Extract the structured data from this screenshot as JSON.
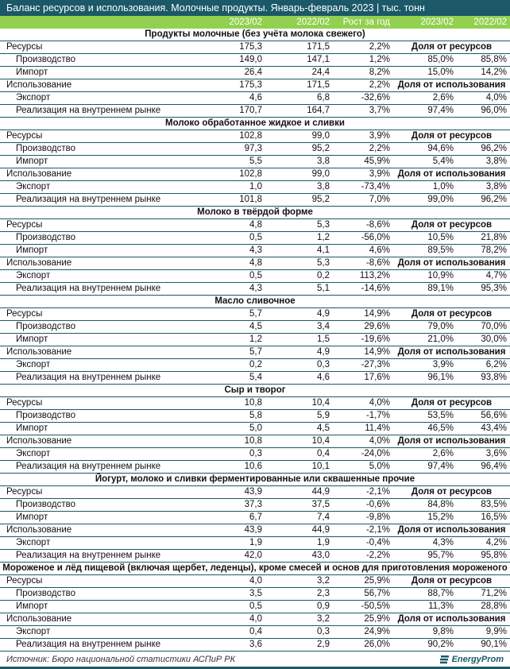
{
  "title": "Баланс ресурсов и использования. Молочные продукты. Январь-февраль 2023 | тыс. тонн",
  "columns": [
    "",
    "2023/02",
    "2022/02",
    "Рост за год",
    "2023/02",
    "2022/02"
  ],
  "sections": [
    {
      "name": "Продукты молочные (без учёта молока свежего)",
      "rows": [
        {
          "label": "Ресурсы",
          "v": [
            "175,3",
            "171,5",
            "2,2%"
          ],
          "share": "Доля от ресурсов"
        },
        {
          "label": "Производство",
          "v": [
            "149,0",
            "147,1",
            "1,2%",
            "85,0%",
            "85,8%"
          ]
        },
        {
          "label": "Импорт",
          "v": [
            "26,4",
            "24,4",
            "8,2%",
            "15,0%",
            "14,2%"
          ]
        },
        {
          "label": "Использование",
          "v": [
            "175,3",
            "171,5",
            "2,2%"
          ],
          "share": "Доля от использования"
        },
        {
          "label": "Экспорт",
          "v": [
            "4,6",
            "6,8",
            "-32,6%",
            "2,6%",
            "4,0%"
          ]
        },
        {
          "label": "Реализация на внутреннем рынке",
          "v": [
            "170,7",
            "164,7",
            "3,7%",
            "97,4%",
            "96,0%"
          ]
        }
      ]
    },
    {
      "name": "Молоко обработанное жидкое и сливки",
      "rows": [
        {
          "label": "Ресурсы",
          "v": [
            "102,8",
            "99,0",
            "3,9%"
          ],
          "share": "Доля от ресурсов"
        },
        {
          "label": "Производство",
          "v": [
            "97,3",
            "95,2",
            "2,2%",
            "94,6%",
            "96,2%"
          ]
        },
        {
          "label": "Импорт",
          "v": [
            "5,5",
            "3,8",
            "45,9%",
            "5,4%",
            "3,8%"
          ]
        },
        {
          "label": "Использование",
          "v": [
            "102,8",
            "99,0",
            "3,9%"
          ],
          "share": "Доля от использования"
        },
        {
          "label": "Экспорт",
          "v": [
            "1,0",
            "3,8",
            "-73,4%",
            "1,0%",
            "3,8%"
          ]
        },
        {
          "label": "Реализация на внутреннем рынке",
          "v": [
            "101,8",
            "95,2",
            "7,0%",
            "99,0%",
            "96,2%"
          ]
        }
      ]
    },
    {
      "name": "Молоко в твёрдой форме",
      "rows": [
        {
          "label": "Ресурсы",
          "v": [
            "4,8",
            "5,3",
            "-8,6%"
          ],
          "share": "Доля от ресурсов"
        },
        {
          "label": "Производство",
          "v": [
            "0,5",
            "1,2",
            "-56,0%",
            "10,5%",
            "21,8%"
          ]
        },
        {
          "label": "Импорт",
          "v": [
            "4,3",
            "4,1",
            "4,6%",
            "89,5%",
            "78,2%"
          ]
        },
        {
          "label": "Использование",
          "v": [
            "4,8",
            "5,3",
            "-8,6%"
          ],
          "share": "Доля от использования"
        },
        {
          "label": "Экспорт",
          "v": [
            "0,5",
            "0,2",
            "113,2%",
            "10,9%",
            "4,7%"
          ]
        },
        {
          "label": "Реализация на внутреннем рынке",
          "v": [
            "4,3",
            "5,1",
            "-14,6%",
            "89,1%",
            "95,3%"
          ]
        }
      ]
    },
    {
      "name": "Масло сливочное",
      "rows": [
        {
          "label": "Ресурсы",
          "v": [
            "5,7",
            "4,9",
            "14,9%"
          ],
          "share": "Доля от ресурсов"
        },
        {
          "label": "Производство",
          "v": [
            "4,5",
            "3,4",
            "29,6%",
            "79,0%",
            "70,0%"
          ]
        },
        {
          "label": "Импорт",
          "v": [
            "1,2",
            "1,5",
            "-19,6%",
            "21,0%",
            "30,0%"
          ]
        },
        {
          "label": "Использование",
          "v": [
            "5,7",
            "4,9",
            "14,9%"
          ],
          "share": "Доля от использования"
        },
        {
          "label": "Экспорт",
          "v": [
            "0,2",
            "0,3",
            "-27,3%",
            "3,9%",
            "6,2%"
          ]
        },
        {
          "label": "Реализация на внутреннем рынке",
          "v": [
            "5,4",
            "4,6",
            "17,6%",
            "96,1%",
            "93,8%"
          ]
        }
      ]
    },
    {
      "name": "Сыр и творог",
      "rows": [
        {
          "label": "Ресурсы",
          "v": [
            "10,8",
            "10,4",
            "4,0%"
          ],
          "share": "Доля от ресурсов"
        },
        {
          "label": "Производство",
          "v": [
            "5,8",
            "5,9",
            "-1,7%",
            "53,5%",
            "56,6%"
          ]
        },
        {
          "label": "Импорт",
          "v": [
            "5,0",
            "4,5",
            "11,4%",
            "46,5%",
            "43,4%"
          ]
        },
        {
          "label": "Использование",
          "v": [
            "10,8",
            "10,4",
            "4,0%"
          ],
          "share": "Доля от использования"
        },
        {
          "label": "Экспорт",
          "v": [
            "0,3",
            "0,4",
            "-24,0%",
            "2,6%",
            "3,6%"
          ]
        },
        {
          "label": "Реализация на внутреннем рынке",
          "v": [
            "10,6",
            "10,1",
            "5,0%",
            "97,4%",
            "96,4%"
          ]
        }
      ]
    },
    {
      "name": "Йогурт, молоко и сливки ферментированные или сквашенные прочие",
      "rows": [
        {
          "label": "Ресурсы",
          "v": [
            "43,9",
            "44,9",
            "-2,1%"
          ],
          "share": "Доля от ресурсов"
        },
        {
          "label": "Производство",
          "v": [
            "37,3",
            "37,5",
            "-0,6%",
            "84,8%",
            "83,5%"
          ]
        },
        {
          "label": "Импорт",
          "v": [
            "6,7",
            "7,4",
            "-9,8%",
            "15,2%",
            "16,5%"
          ]
        },
        {
          "label": "Использование",
          "v": [
            "43,9",
            "44,9",
            "-2,1%"
          ],
          "share": "Доля от использования"
        },
        {
          "label": "Экспорт",
          "v": [
            "1,9",
            "1,9",
            "-0,4%",
            "4,3%",
            "4,2%"
          ]
        },
        {
          "label": "Реализация на внутреннем рынке",
          "v": [
            "42,0",
            "43,0",
            "-2,2%",
            "95,7%",
            "95,8%"
          ]
        }
      ]
    },
    {
      "name": "Мороженое и лёд пищевой (включая щербет, леденцы), кроме смесей и основ для приготовления мороженого",
      "rows": [
        {
          "label": "Ресурсы",
          "v": [
            "4,0",
            "3,2",
            "25,9%"
          ],
          "share": "Доля от ресурсов"
        },
        {
          "label": "Производство",
          "v": [
            "3,5",
            "2,3",
            "56,7%",
            "88,7%",
            "71,2%"
          ]
        },
        {
          "label": "Импорт",
          "v": [
            "0,5",
            "0,9",
            "-50,5%",
            "11,3%",
            "28,8%"
          ]
        },
        {
          "label": "Использование",
          "v": [
            "4,0",
            "3,2",
            "25,9%"
          ],
          "share": "Доля от использования"
        },
        {
          "label": "Экспорт",
          "v": [
            "0,4",
            "0,3",
            "24,9%",
            "9,8%",
            "9,9%"
          ]
        },
        {
          "label": "Реализация на внутреннем рынке",
          "v": [
            "3,6",
            "2,9",
            "26,0%",
            "90,2%",
            "90,1%"
          ]
        }
      ]
    }
  ],
  "footer": {
    "source": "Источник: Бюро национальной статистики АСПиР РК",
    "logo": "EnergyProm"
  }
}
